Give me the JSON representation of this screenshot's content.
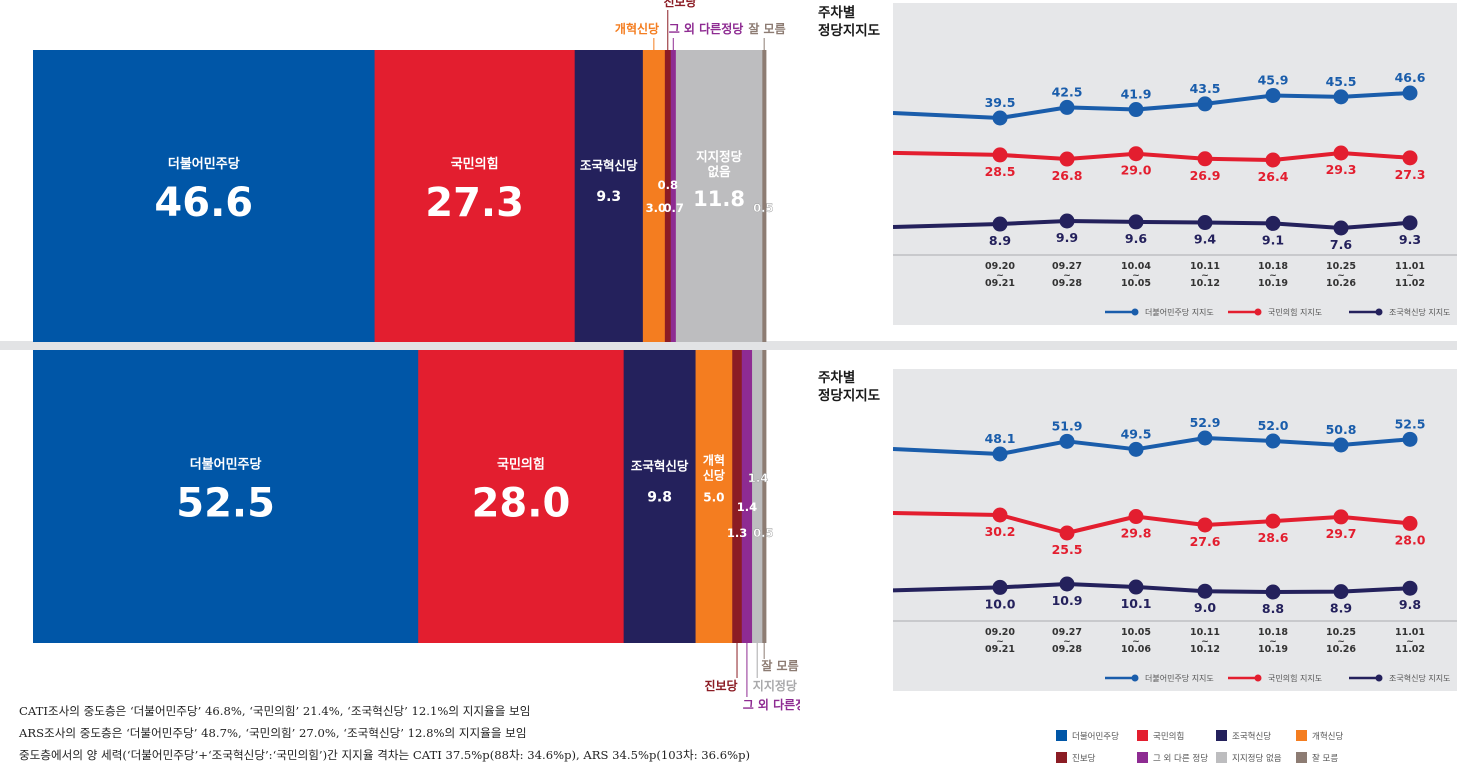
{
  "chart_data": [
    {
      "type": "bar",
      "stacked": "horizontal-100",
      "segments": [
        {
          "name": "더불어민주당",
          "value": 46.6,
          "color": "#0056a7",
          "label": "더불어민주당"
        },
        {
          "name": "국민의힘",
          "value": 27.3,
          "color": "#e31e2f",
          "label": "국민의힘"
        },
        {
          "name": "조국혁신당",
          "value": 9.3,
          "color": "#24215c",
          "label": "조국혁신당"
        },
        {
          "name": "개혁신당",
          "value": 3.0,
          "color": "#f47d20",
          "label": "개혁신당"
        },
        {
          "name": "진보당",
          "value": 0.8,
          "color": "#8b1c24",
          "label": "진보당"
        },
        {
          "name": "그 외 다른정당",
          "value": 0.7,
          "color": "#8e2b92",
          "label": "그 외 다른정당"
        },
        {
          "name": "지지정당 없음",
          "value": 11.8,
          "color": "#bdbdbf",
          "label": "지지정당\n없음"
        },
        {
          "name": "잘 모름",
          "value": 0.5,
          "color": "#8d7c73",
          "label": "잘 모름"
        }
      ]
    },
    {
      "type": "line",
      "title": "주차별\n정당지지도",
      "x": [
        [
          "09.20",
          "09.21"
        ],
        [
          "09.27",
          "09.28"
        ],
        [
          "10.04",
          "10.05"
        ],
        [
          "10.11",
          "10.12"
        ],
        [
          "10.18",
          "10.19"
        ],
        [
          "10.25",
          "10.26"
        ],
        [
          "11.01",
          "11.02"
        ]
      ],
      "series": [
        {
          "name": "더불어민주당 지지도",
          "color": "#1a5dab",
          "values": [
            39.5,
            42.5,
            41.9,
            43.5,
            45.9,
            45.5,
            46.6
          ]
        },
        {
          "name": "국민의힘 지지도",
          "color": "#e31e2f",
          "values": [
            28.5,
            26.8,
            29.0,
            26.9,
            26.4,
            29.3,
            27.3
          ]
        },
        {
          "name": "조국혁신당 지지도",
          "color": "#24215c",
          "values": [
            8.9,
            9.9,
            9.6,
            9.4,
            9.1,
            7.6,
            9.3
          ]
        }
      ]
    },
    {
      "type": "bar",
      "stacked": "horizontal-100",
      "segments": [
        {
          "name": "더불어민주당",
          "value": 52.5,
          "color": "#0056a7",
          "label": "더불어민주당"
        },
        {
          "name": "국민의힘",
          "value": 28.0,
          "color": "#e31e2f",
          "label": "국민의힘"
        },
        {
          "name": "조국혁신당",
          "value": 9.8,
          "color": "#24215c",
          "label": "조국혁신당"
        },
        {
          "name": "개혁신당",
          "value": 5.0,
          "color": "#f47d20",
          "label": "개혁\n신당"
        },
        {
          "name": "진보당",
          "value": 1.3,
          "color": "#8b1c24",
          "label": "진보당"
        },
        {
          "name": "그 외 다른정당",
          "value": 1.4,
          "color": "#8e2b92",
          "label": "그 외 다른정당"
        },
        {
          "name": "지지정당 없음",
          "value": 1.4,
          "color": "#bdbdbf",
          "label": "지지정당 없음"
        },
        {
          "name": "잘 모름",
          "value": 0.5,
          "color": "#8d7c73",
          "label": "잘 모름"
        }
      ]
    },
    {
      "type": "line",
      "title": "주차별\n정당지지도",
      "x": [
        [
          "09.20",
          "09.21"
        ],
        [
          "09.27",
          "09.28"
        ],
        [
          "10.05",
          "10.06"
        ],
        [
          "10.11",
          "10.12"
        ],
        [
          "10.18",
          "10.19"
        ],
        [
          "10.25",
          "10.26"
        ],
        [
          "11.01",
          "11.02"
        ]
      ],
      "series": [
        {
          "name": "더불어민주당 지지도",
          "color": "#1a5dab",
          "values": [
            48.1,
            51.9,
            49.5,
            52.9,
            52.0,
            50.8,
            52.5
          ]
        },
        {
          "name": "국민의힘 지지도",
          "color": "#e31e2f",
          "values": [
            30.2,
            25.5,
            29.8,
            27.6,
            28.6,
            29.7,
            28.0
          ]
        },
        {
          "name": "조국혁신당 지지도",
          "color": "#24215c",
          "values": [
            10.0,
            10.9,
            10.1,
            9.0,
            8.8,
            8.9,
            9.8
          ]
        }
      ]
    }
  ],
  "notes": [
    "CATI조사의 중도층은 ‘더불어민주당’ 46.8%, ‘국민의힘’ 21.4%, ‘조국혁신당’ 12.1%의 지지율을 보임",
    "ARS조사의 중도층은 ‘더불어민주당’ 48.7%, ‘국민의힘’ 27.0%, ‘조국혁신당’ 12.8%의 지지율을 보임",
    "중도층에서의 양 세력(‘더불어민주당’+‘조국혁신당’:‘국민의힘’)간 지지율 격차는 CATI 37.5%p(88차: 34.6%p), ARS 34.5%p(103차: 36.6%p)"
  ],
  "legend": [
    {
      "name": "더불어민주당",
      "color": "#0056a7"
    },
    {
      "name": "국민의힘",
      "color": "#e31e2f"
    },
    {
      "name": "조국혁신당",
      "color": "#24215c"
    },
    {
      "name": "개혁신당",
      "color": "#f47d20"
    },
    {
      "name": "진보당",
      "color": "#8b1c24"
    },
    {
      "name": "그 외 다른 정당",
      "color": "#8e2b92"
    },
    {
      "name": "지지정당 없음",
      "color": "#bdbdbf"
    },
    {
      "name": "잘 모름",
      "color": "#8d7c73"
    }
  ]
}
